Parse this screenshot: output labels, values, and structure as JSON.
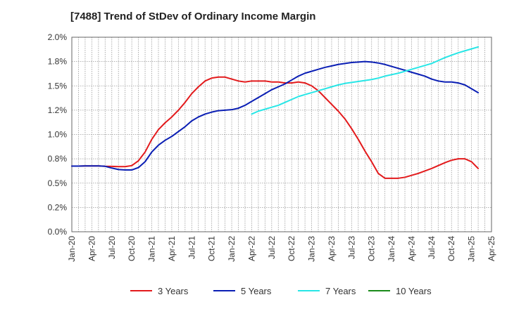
{
  "chart_data": {
    "type": "line",
    "title": "[7488]  Trend of StDev of Ordinary Income Margin",
    "xlabel": "",
    "ylabel": "",
    "ylim": [
      0,
      2.0
    ],
    "yticks": [
      0,
      0.25,
      0.5,
      0.75,
      1.0,
      1.25,
      1.5,
      1.75,
      2.0
    ],
    "ytick_labels": [
      "0.0%",
      "0.2%",
      "0.5%",
      "0.8%",
      "1.0%",
      "1.2%",
      "1.5%",
      "1.8%",
      "2.0%"
    ],
    "x_tick_labels": [
      "Jan-20",
      "Apr-20",
      "Jul-20",
      "Oct-20",
      "Jan-21",
      "Apr-21",
      "Jul-21",
      "Oct-21",
      "Jan-22",
      "Apr-22",
      "Jul-22",
      "Oct-22",
      "Jan-23",
      "Apr-23",
      "Jul-23",
      "Oct-23",
      "Jan-24",
      "Apr-24",
      "Jul-24",
      "Oct-24",
      "Jan-25",
      "Apr-25"
    ],
    "grid": true,
    "legend_position": "bottom",
    "series": [
      {
        "name": "3 Years",
        "color": "#e31a1c",
        "start_index": 0,
        "values": [
          0.675,
          0.675,
          0.677,
          0.677,
          0.677,
          0.673,
          0.672,
          0.67,
          0.67,
          0.68,
          0.73,
          0.82,
          0.95,
          1.05,
          1.12,
          1.18,
          1.25,
          1.33,
          1.42,
          1.49,
          1.55,
          1.58,
          1.59,
          1.59,
          1.57,
          1.55,
          1.54,
          1.55,
          1.55,
          1.55,
          1.54,
          1.54,
          1.53,
          1.53,
          1.54,
          1.53,
          1.5,
          1.45,
          1.38,
          1.31,
          1.24,
          1.16,
          1.06,
          0.95,
          0.83,
          0.72,
          0.6,
          0.55,
          0.55,
          0.55,
          0.56,
          0.58,
          0.6,
          0.625,
          0.65,
          0.68,
          0.71,
          0.735,
          0.75,
          0.75,
          0.72,
          0.65
        ]
      },
      {
        "name": "5 Years",
        "color": "#0a1eb4",
        "start_index": 0,
        "values": [
          0.675,
          0.675,
          0.677,
          0.677,
          0.677,
          0.673,
          0.655,
          0.64,
          0.635,
          0.635,
          0.66,
          0.72,
          0.82,
          0.89,
          0.94,
          0.98,
          1.03,
          1.08,
          1.14,
          1.18,
          1.21,
          1.23,
          1.245,
          1.25,
          1.255,
          1.27,
          1.3,
          1.34,
          1.38,
          1.42,
          1.46,
          1.49,
          1.52,
          1.56,
          1.6,
          1.63,
          1.65,
          1.67,
          1.69,
          1.705,
          1.72,
          1.73,
          1.74,
          1.745,
          1.75,
          1.745,
          1.735,
          1.72,
          1.7,
          1.68,
          1.66,
          1.64,
          1.62,
          1.6,
          1.57,
          1.55,
          1.54,
          1.54,
          1.53,
          1.51,
          1.47,
          1.43
        ]
      },
      {
        "name": "7 Years",
        "color": "#27e6e6",
        "start_index": 27,
        "values": [
          1.21,
          1.24,
          1.26,
          1.28,
          1.3,
          1.33,
          1.36,
          1.39,
          1.41,
          1.43,
          1.45,
          1.47,
          1.49,
          1.51,
          1.525,
          1.535,
          1.545,
          1.555,
          1.565,
          1.58,
          1.6,
          1.615,
          1.63,
          1.65,
          1.67,
          1.69,
          1.71,
          1.73,
          1.76,
          1.79,
          1.815,
          1.84,
          1.86,
          1.88,
          1.9
        ]
      },
      {
        "name": "10 Years",
        "color": "#1a8a1a",
        "start_index": 0,
        "values": []
      }
    ]
  }
}
